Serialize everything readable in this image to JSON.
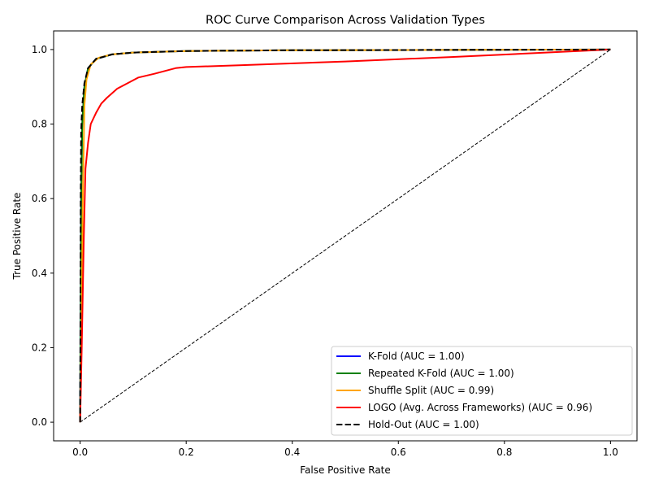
{
  "chart_data": {
    "type": "line",
    "title": "ROC Curve Comparison Across Validation Types",
    "xlabel": "False Positive Rate",
    "ylabel": "True Positive Rate",
    "xlim": [
      -0.05,
      1.05
    ],
    "ylim": [
      -0.05,
      1.05
    ],
    "xticks": [
      "0.0",
      "0.2",
      "0.4",
      "0.6",
      "0.8",
      "1.0"
    ],
    "yticks": [
      "0.0",
      "0.2",
      "0.4",
      "0.6",
      "0.8",
      "1.0"
    ],
    "grid": false,
    "legend_position": "lower-right",
    "series": [
      {
        "name": "K-Fold (AUC = 1.00)",
        "color": "#0000ff",
        "dash": "solid",
        "points": [
          [
            0,
            0
          ],
          [
            0.001,
            0.3
          ],
          [
            0.002,
            0.6
          ],
          [
            0.004,
            0.8
          ],
          [
            0.008,
            0.9
          ],
          [
            0.015,
            0.95
          ],
          [
            0.03,
            0.975
          ],
          [
            0.06,
            0.987
          ],
          [
            0.1,
            0.992
          ],
          [
            0.2,
            0.996
          ],
          [
            0.4,
            0.998
          ],
          [
            1.0,
            1.0
          ]
        ]
      },
      {
        "name": "Repeated K-Fold (AUC = 1.00)",
        "color": "#008000",
        "dash": "solid",
        "points": [
          [
            0,
            0
          ],
          [
            0.001,
            0.3
          ],
          [
            0.002,
            0.6
          ],
          [
            0.004,
            0.8
          ],
          [
            0.008,
            0.9
          ],
          [
            0.015,
            0.95
          ],
          [
            0.03,
            0.975
          ],
          [
            0.06,
            0.987
          ],
          [
            0.1,
            0.992
          ],
          [
            0.2,
            0.996
          ],
          [
            0.4,
            0.998
          ],
          [
            1.0,
            1.0
          ]
        ]
      },
      {
        "name": "Shuffle Split (AUC = 0.99)",
        "color": "#ffa500",
        "dash": "solid",
        "points": [
          [
            0,
            0
          ],
          [
            0.002,
            0.2
          ],
          [
            0.005,
            0.6
          ],
          [
            0.008,
            0.85
          ],
          [
            0.012,
            0.92
          ],
          [
            0.02,
            0.96
          ],
          [
            0.035,
            0.978
          ],
          [
            0.06,
            0.987
          ],
          [
            0.1,
            0.992
          ],
          [
            0.2,
            0.996
          ],
          [
            0.4,
            0.998
          ],
          [
            1.0,
            1.0
          ]
        ]
      },
      {
        "name": "LOGO (Avg. Across Frameworks) (AUC = 0.96)",
        "color": "#ff0000",
        "dash": "solid",
        "points": [
          [
            0,
            0
          ],
          [
            0.003,
            0.2
          ],
          [
            0.007,
            0.5
          ],
          [
            0.01,
            0.68
          ],
          [
            0.015,
            0.75
          ],
          [
            0.02,
            0.8
          ],
          [
            0.03,
            0.83
          ],
          [
            0.04,
            0.855
          ],
          [
            0.05,
            0.87
          ],
          [
            0.07,
            0.895
          ],
          [
            0.09,
            0.91
          ],
          [
            0.11,
            0.925
          ],
          [
            0.14,
            0.935
          ],
          [
            0.18,
            0.95
          ],
          [
            0.2,
            0.953
          ],
          [
            0.3,
            0.958
          ],
          [
            0.5,
            0.968
          ],
          [
            0.7,
            0.98
          ],
          [
            0.85,
            0.99
          ],
          [
            1.0,
            1.0
          ]
        ]
      },
      {
        "name": "Hold-Out (AUC = 1.00)",
        "color": "#000000",
        "dash": "dashed",
        "points": [
          [
            0,
            0
          ],
          [
            0.0005,
            0.3
          ],
          [
            0.001,
            0.6
          ],
          [
            0.002,
            0.78
          ],
          [
            0.004,
            0.85
          ],
          [
            0.008,
            0.91
          ],
          [
            0.015,
            0.95
          ],
          [
            0.03,
            0.975
          ],
          [
            0.06,
            0.987
          ],
          [
            0.1,
            0.992
          ],
          [
            0.2,
            0.996
          ],
          [
            0.4,
            0.998
          ],
          [
            1.0,
            1.0
          ]
        ]
      }
    ],
    "reference_line": {
      "color": "#000000",
      "dash": "dashed",
      "points": [
        [
          0,
          0
        ],
        [
          1,
          1
        ]
      ]
    }
  }
}
